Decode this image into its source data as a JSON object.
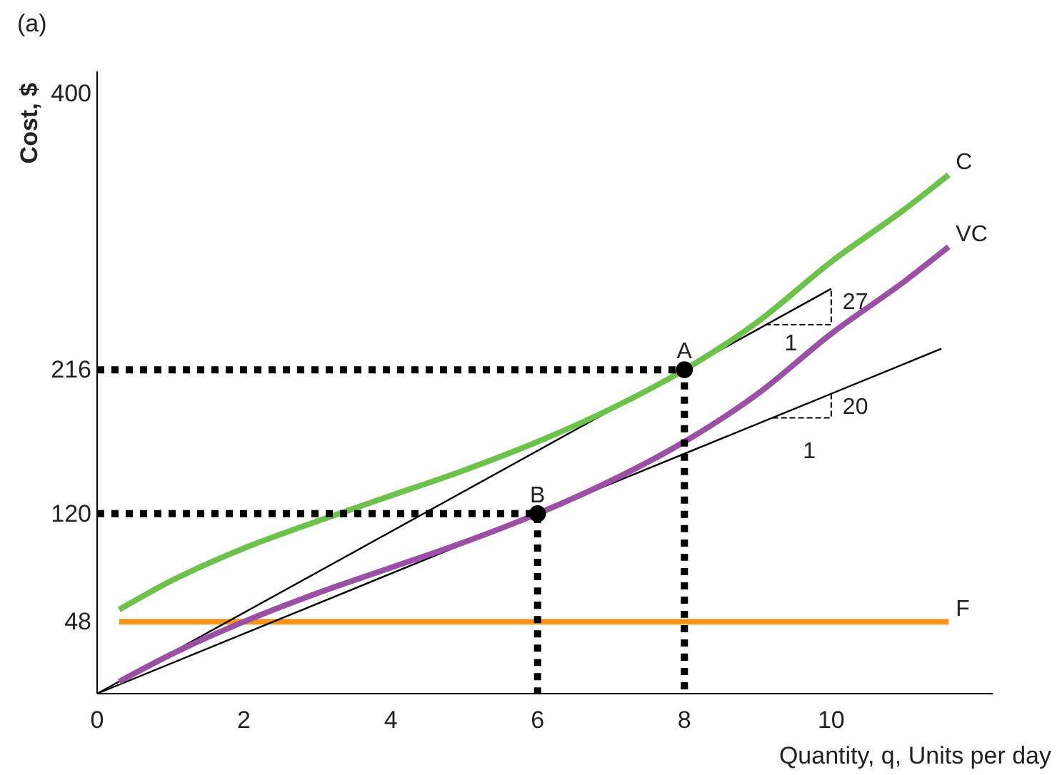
{
  "chart_data": {
    "type": "line",
    "title": "(a)",
    "xlabel": "Quantity, q, Units per day",
    "ylabel": "Cost, $",
    "xlim": [
      0,
      12.2
    ],
    "ylim": [
      0,
      415
    ],
    "xticks": [
      0,
      2,
      4,
      6,
      8,
      10
    ],
    "yticks": [
      48,
      120,
      216,
      400
    ],
    "grid": false,
    "line_style": "solid",
    "marker": "none",
    "series": [
      {
        "name": "F",
        "color": "#f7941d",
        "x": [
          0.3,
          11.6
        ],
        "values": [
          48,
          48
        ]
      },
      {
        "type": "line",
        "color": "#000000",
        "x": [
          0,
          10
        ],
        "values": [
          0,
          270
        ]
      },
      {
        "type": "line",
        "color": "#000000",
        "x": [
          0,
          11.5
        ],
        "values": [
          0,
          230
        ]
      },
      {
        "name": "C",
        "color": "#6cc24a",
        "x": [
          0.3,
          1,
          2,
          3,
          4,
          5,
          6,
          7,
          8,
          9,
          10,
          11,
          11.6
        ],
        "values": [
          56,
          75,
          97,
          115,
          132,
          149,
          168,
          190,
          216,
          248,
          288,
          323,
          346
        ]
      },
      {
        "name": "VC",
        "color": "#9b4fa5",
        "x": [
          0.3,
          1,
          2,
          3,
          4,
          5,
          6,
          7,
          8,
          9,
          10,
          11,
          11.6
        ],
        "values": [
          8,
          26,
          48,
          67,
          84,
          101,
          120,
          142,
          168,
          200,
          240,
          275,
          298
        ]
      },
      {
        "type": "line",
        "color": "#000000",
        "line_style": "dotted",
        "x": [
          0,
          8,
          8
        ],
        "values": [
          216,
          216,
          0
        ]
      },
      {
        "type": "line",
        "color": "#000000",
        "line_style": "dotted",
        "x": [
          0,
          6,
          6
        ],
        "values": [
          120,
          120,
          0
        ]
      },
      {
        "type": "scatter",
        "color": "#000000",
        "marker": "circle",
        "x": [
          8,
          6
        ],
        "values": [
          216,
          120
        ]
      }
    ],
    "annotations": [
      {
        "text": "A",
        "x": 8,
        "y": 216
      },
      {
        "text": "B",
        "x": 6,
        "y": 120
      },
      {
        "text": "27",
        "x": 10,
        "y": 270
      },
      "1",
      {
        "text": "20",
        "x": 10,
        "y": 200
      },
      "1"
    ]
  }
}
